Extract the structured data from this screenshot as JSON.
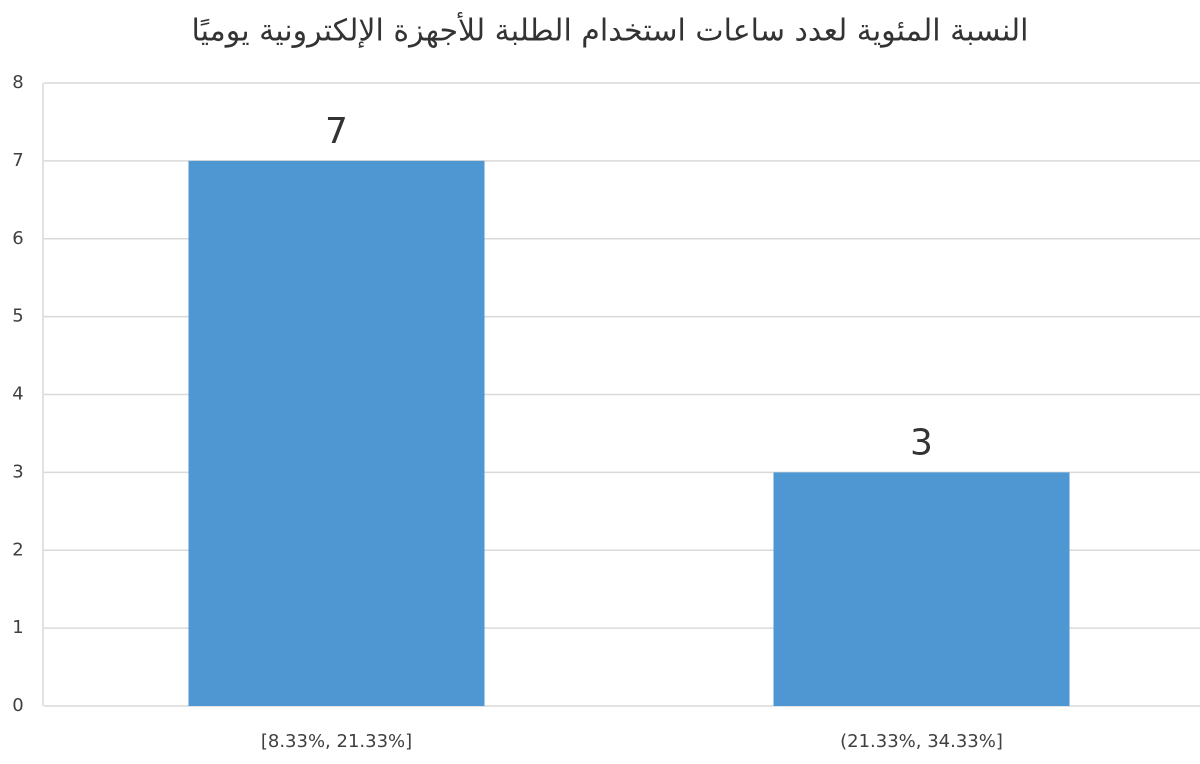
{
  "chart_data": {
    "type": "bar",
    "title": "النسبة المئوية لعدد ساعات استخدام الطلبة للأجهزة الإلكترونية يوميًا",
    "categories": [
      "[8.33%, 21.33%]",
      "(21.33%, 34.33%]"
    ],
    "values": [
      7,
      3
    ],
    "color": "#4f97d3",
    "ylim": [
      0,
      8
    ],
    "yticks": [
      0,
      1,
      2,
      3,
      4,
      5,
      6,
      7,
      8
    ],
    "grid": true
  }
}
